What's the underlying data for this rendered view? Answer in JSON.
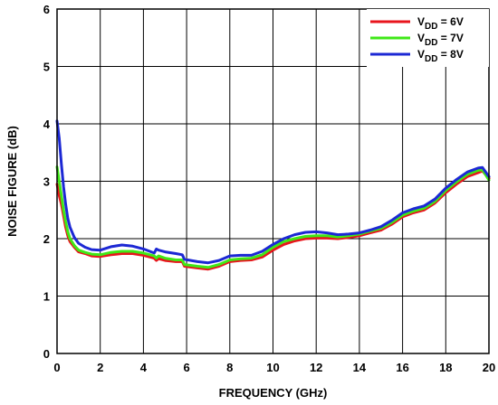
{
  "chart_data": {
    "type": "line",
    "title": "",
    "xlabel": "FREQUENCY (GHz)",
    "ylabel": "NOISE FIGURE (dB)",
    "xlim": [
      0,
      20
    ],
    "ylim": [
      0,
      6
    ],
    "xticks": [
      0,
      2,
      4,
      6,
      8,
      10,
      12,
      14,
      16,
      18,
      20
    ],
    "yticks": [
      0,
      1,
      2,
      3,
      4,
      5,
      6
    ],
    "grid": true,
    "legend_position": "top-right",
    "series": [
      {
        "name_main": "V",
        "name_sub": "DD",
        "name_rest": " = 6V",
        "color": "#e8141c",
        "x": [
          0.0,
          0.1,
          0.2,
          0.3,
          0.4,
          0.5,
          0.6,
          0.8,
          1.0,
          1.3,
          1.6,
          2.0,
          2.5,
          3.0,
          3.5,
          4.0,
          4.5,
          4.6,
          4.7,
          5.0,
          5.5,
          5.8,
          5.9,
          6.5,
          7.0,
          7.5,
          8.0,
          8.5,
          9.0,
          9.5,
          10.0,
          10.5,
          11.0,
          11.5,
          12.0,
          12.5,
          13.0,
          13.5,
          14.0,
          14.5,
          15.0,
          15.5,
          16.0,
          16.5,
          17.0,
          17.5,
          18.0,
          18.5,
          19.0,
          19.5,
          19.7,
          20.0
        ],
        "y": [
          2.95,
          2.75,
          2.6,
          2.4,
          2.2,
          2.05,
          1.95,
          1.85,
          1.77,
          1.74,
          1.7,
          1.69,
          1.72,
          1.74,
          1.74,
          1.71,
          1.66,
          1.62,
          1.65,
          1.62,
          1.6,
          1.6,
          1.52,
          1.49,
          1.47,
          1.52,
          1.6,
          1.62,
          1.63,
          1.68,
          1.8,
          1.9,
          1.96,
          2.0,
          2.01,
          2.01,
          2.0,
          2.02,
          2.05,
          2.1,
          2.15,
          2.25,
          2.38,
          2.45,
          2.5,
          2.62,
          2.8,
          2.95,
          3.08,
          3.15,
          3.18,
          3.05
        ]
      },
      {
        "name_main": "V",
        "name_sub": "DD",
        "name_rest": " = 7V",
        "color": "#3fe817",
        "x": [
          0.0,
          0.1,
          0.2,
          0.3,
          0.4,
          0.5,
          0.6,
          0.8,
          1.0,
          1.3,
          1.6,
          2.0,
          2.5,
          3.0,
          3.5,
          4.0,
          4.5,
          4.6,
          4.7,
          5.0,
          5.5,
          5.8,
          5.9,
          6.5,
          7.0,
          7.5,
          8.0,
          8.5,
          9.0,
          9.5,
          10.0,
          10.5,
          11.0,
          11.5,
          12.0,
          12.5,
          13.0,
          13.5,
          14.0,
          14.5,
          15.0,
          15.5,
          16.0,
          16.5,
          17.0,
          17.5,
          18.0,
          18.5,
          19.0,
          19.5,
          19.7,
          20.0
        ],
        "y": [
          3.25,
          3.0,
          2.75,
          2.5,
          2.3,
          2.12,
          2.0,
          1.88,
          1.8,
          1.76,
          1.73,
          1.72,
          1.76,
          1.78,
          1.78,
          1.75,
          1.7,
          1.66,
          1.7,
          1.66,
          1.63,
          1.63,
          1.55,
          1.52,
          1.5,
          1.55,
          1.63,
          1.65,
          1.66,
          1.72,
          1.85,
          1.95,
          2.0,
          2.04,
          2.05,
          2.05,
          2.03,
          2.05,
          2.08,
          2.13,
          2.18,
          2.28,
          2.41,
          2.48,
          2.53,
          2.65,
          2.84,
          2.99,
          3.12,
          3.19,
          3.2,
          3.02
        ]
      },
      {
        "name_main": "V",
        "name_sub": "DD",
        "name_rest": " = 8V",
        "color": "#1c28d4",
        "x": [
          0.0,
          0.1,
          0.2,
          0.3,
          0.4,
          0.5,
          0.6,
          0.8,
          1.0,
          1.3,
          1.6,
          2.0,
          2.5,
          3.0,
          3.5,
          4.0,
          4.5,
          4.6,
          4.7,
          5.0,
          5.5,
          5.8,
          5.9,
          6.5,
          7.0,
          7.5,
          8.0,
          8.5,
          9.0,
          9.5,
          10.0,
          10.5,
          11.0,
          11.5,
          12.0,
          12.5,
          13.0,
          13.5,
          14.0,
          14.5,
          15.0,
          15.5,
          16.0,
          16.5,
          17.0,
          17.5,
          18.0,
          18.5,
          19.0,
          19.5,
          19.7,
          20.0
        ],
        "y": [
          4.05,
          3.75,
          3.3,
          2.9,
          2.6,
          2.35,
          2.2,
          2.02,
          1.92,
          1.85,
          1.81,
          1.8,
          1.86,
          1.89,
          1.87,
          1.82,
          1.75,
          1.82,
          1.8,
          1.77,
          1.74,
          1.72,
          1.64,
          1.6,
          1.58,
          1.62,
          1.7,
          1.71,
          1.71,
          1.78,
          1.9,
          2.0,
          2.07,
          2.11,
          2.12,
          2.1,
          2.07,
          2.08,
          2.1,
          2.15,
          2.21,
          2.32,
          2.45,
          2.52,
          2.57,
          2.69,
          2.88,
          3.03,
          3.16,
          3.23,
          3.24,
          3.08
        ]
      }
    ]
  }
}
